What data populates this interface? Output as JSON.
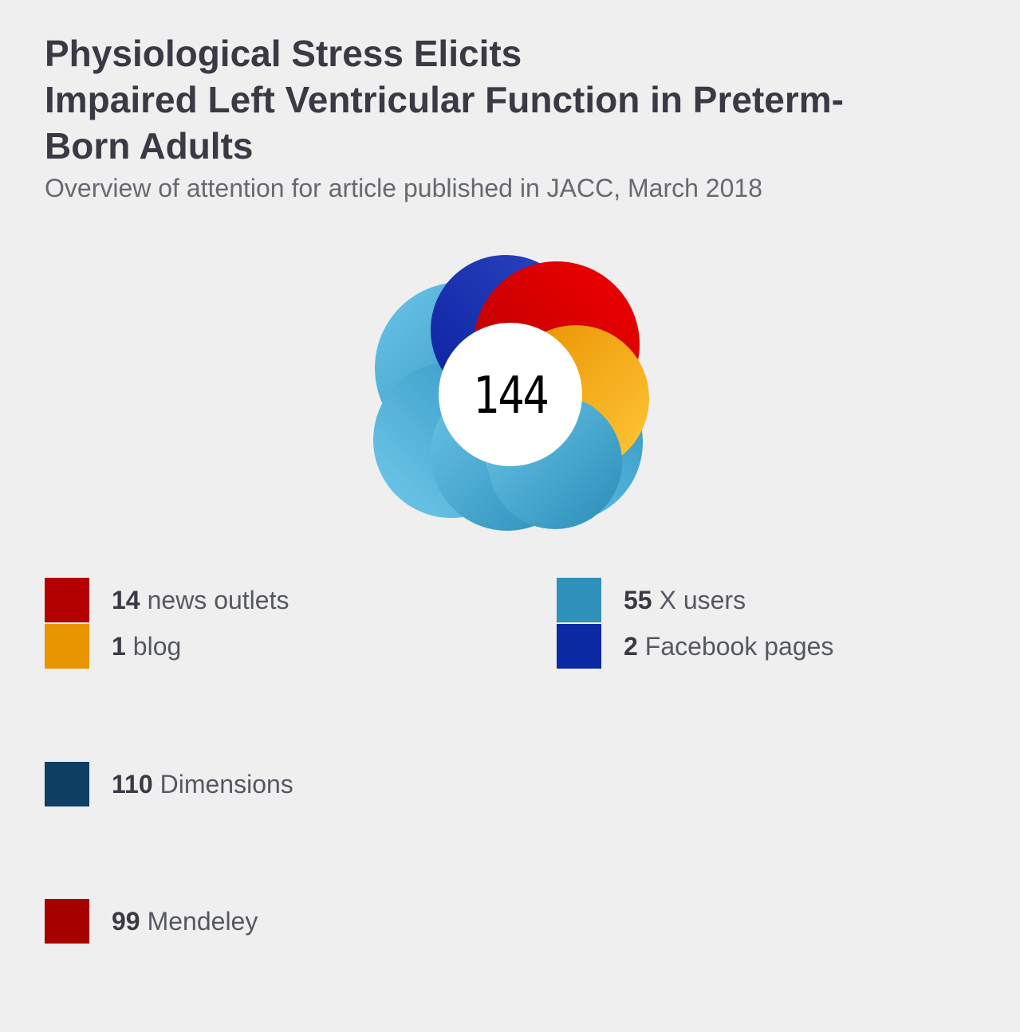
{
  "header": {
    "title_lines": [
      "Physiological Stress Elicits",
      "Impaired Left Ventricular Function in Preterm-",
      "Born Adults"
    ],
    "subtitle": "Overview of attention for article published in JACC, March 2018"
  },
  "score": "144",
  "sources": [
    {
      "count": "14",
      "label": "news outlets",
      "color": "#b30000"
    },
    {
      "count": "1",
      "label": "blog",
      "color": "#e89500"
    },
    {
      "count": "55",
      "label": "X users",
      "color": "#2f90b9"
    },
    {
      "count": "2",
      "label": "Facebook pages",
      "color": "#0b29a3"
    },
    {
      "count": "110",
      "label": "Dimensions",
      "color": "#0f3f63"
    },
    {
      "count": "99",
      "label": "Mendeley",
      "color": "#a60000"
    }
  ]
}
